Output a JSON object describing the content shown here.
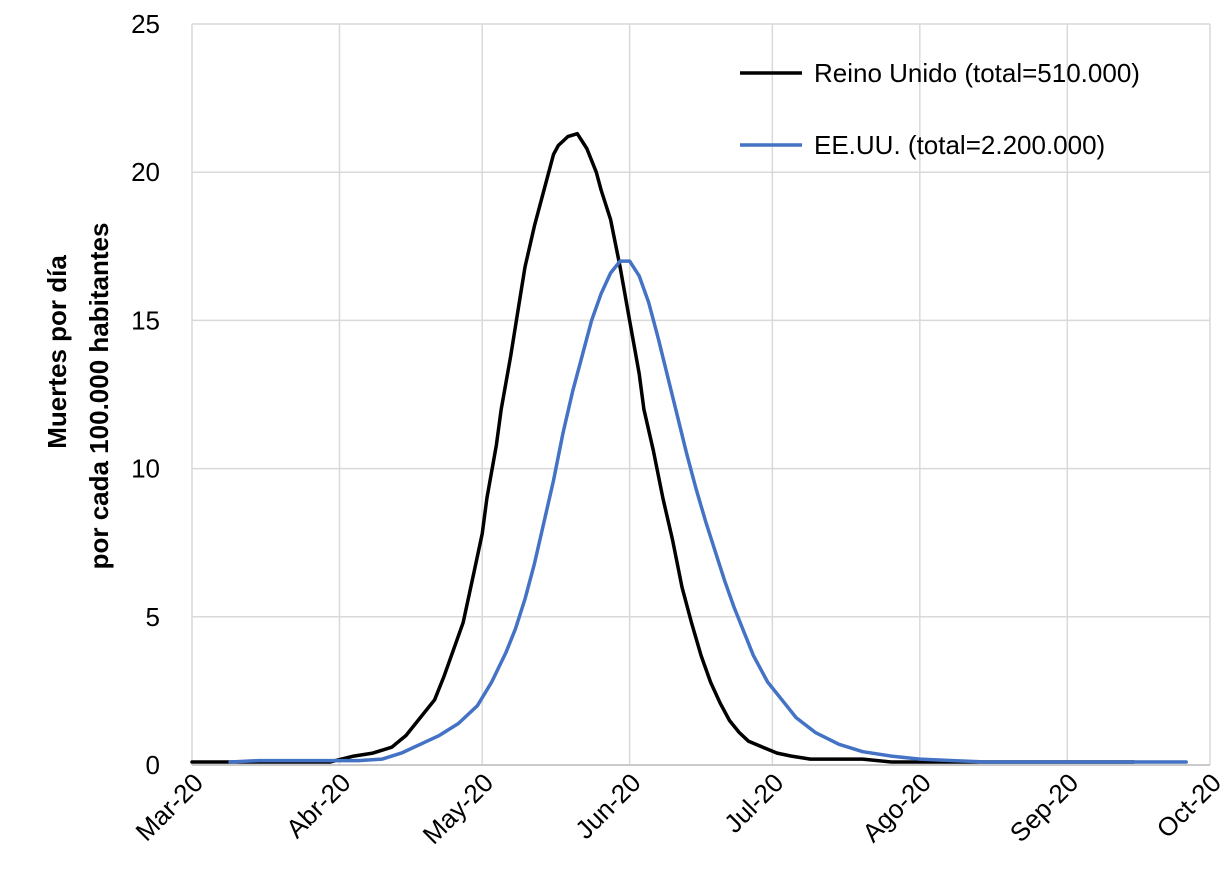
{
  "chart_data": {
    "type": "line",
    "title": "",
    "xlabel": "",
    "ylabel_lines": [
      "Muertes por día",
      "por cada 100.000 habitantes"
    ],
    "ylim": [
      0,
      25
    ],
    "yticks": [
      "0",
      "5",
      "10",
      "15",
      "20",
      "25"
    ],
    "xlim": [
      "2020-03-01",
      "2020-10-01"
    ],
    "xticks": [
      "Mar-20",
      "Abr-20",
      "May-20",
      "Jun-20",
      "Jul-20",
      "Ago-20",
      "Sep-20",
      "Oct-20"
    ],
    "grid": true,
    "legend_position": "top-right",
    "series": [
      {
        "name": "Reino Unido (total=510.000)",
        "color": "#000000",
        "x": [
          "2020-03-01",
          "2020-03-04",
          "2020-03-07",
          "2020-03-12",
          "2020-03-18",
          "2020-03-24",
          "2020-03-30",
          "2020-04-04",
          "2020-04-08",
          "2020-04-12",
          "2020-04-15",
          "2020-04-18",
          "2020-04-21",
          "2020-04-23",
          "2020-04-25",
          "2020-04-27",
          "2020-04-29",
          "2020-05-01",
          "2020-05-02",
          "2020-05-04",
          "2020-05-05",
          "2020-05-07",
          "2020-05-09",
          "2020-05-10",
          "2020-05-12",
          "2020-05-14",
          "2020-05-16",
          "2020-05-17",
          "2020-05-19",
          "2020-05-21",
          "2020-05-23",
          "2020-05-25",
          "2020-05-26",
          "2020-05-28",
          "2020-05-30",
          "2020-06-01",
          "2020-06-03",
          "2020-06-04",
          "2020-06-06",
          "2020-06-08",
          "2020-06-10",
          "2020-06-12",
          "2020-06-14",
          "2020-06-16",
          "2020-06-18",
          "2020-06-20",
          "2020-06-22",
          "2020-06-24",
          "2020-06-26",
          "2020-06-29",
          "2020-07-02",
          "2020-07-05",
          "2020-07-09",
          "2020-07-14",
          "2020-07-20",
          "2020-07-26",
          "2020-08-01",
          "2020-08-10",
          "2020-08-20",
          "2020-09-01",
          "2020-09-15"
        ],
        "values": [
          0.1,
          0.1,
          0.1,
          0.1,
          0.1,
          0.1,
          0.1,
          0.3,
          0.4,
          0.6,
          1.0,
          1.6,
          2.2,
          3.0,
          3.9,
          4.8,
          6.3,
          7.8,
          9.0,
          10.8,
          12.0,
          13.8,
          15.8,
          16.8,
          18.2,
          19.4,
          20.6,
          20.9,
          21.2,
          21.3,
          20.8,
          20.0,
          19.4,
          18.4,
          16.8,
          15.0,
          13.2,
          12.0,
          10.6,
          9.0,
          7.6,
          6.0,
          4.8,
          3.7,
          2.8,
          2.1,
          1.5,
          1.1,
          0.8,
          0.6,
          0.4,
          0.3,
          0.2,
          0.2,
          0.2,
          0.1,
          0.1,
          0.1,
          0.1,
          0.1,
          0.1
        ]
      },
      {
        "name": "EE.UU. (total=2.200.000)",
        "color": "#4472C4",
        "x": [
          "2020-03-09",
          "2020-03-15",
          "2020-03-25",
          "2020-04-05",
          "2020-04-10",
          "2020-04-14",
          "2020-04-18",
          "2020-04-22",
          "2020-04-26",
          "2020-04-30",
          "2020-05-03",
          "2020-05-06",
          "2020-05-08",
          "2020-05-10",
          "2020-05-12",
          "2020-05-14",
          "2020-05-16",
          "2020-05-18",
          "2020-05-20",
          "2020-05-22",
          "2020-05-24",
          "2020-05-26",
          "2020-05-28",
          "2020-05-30",
          "2020-06-01",
          "2020-06-03",
          "2020-06-05",
          "2020-06-07",
          "2020-06-09",
          "2020-06-11",
          "2020-06-13",
          "2020-06-15",
          "2020-06-17",
          "2020-06-19",
          "2020-06-21",
          "2020-06-23",
          "2020-06-25",
          "2020-06-27",
          "2020-06-30",
          "2020-07-03",
          "2020-07-06",
          "2020-07-10",
          "2020-07-15",
          "2020-07-20",
          "2020-07-26",
          "2020-08-01",
          "2020-08-08",
          "2020-08-15",
          "2020-08-25",
          "2020-09-05",
          "2020-09-20",
          "2020-09-26"
        ],
        "values": [
          0.1,
          0.15,
          0.15,
          0.15,
          0.2,
          0.4,
          0.7,
          1.0,
          1.4,
          2.0,
          2.8,
          3.8,
          4.6,
          5.6,
          6.8,
          8.2,
          9.6,
          11.2,
          12.6,
          13.8,
          15.0,
          15.9,
          16.6,
          17.0,
          17.0,
          16.5,
          15.6,
          14.4,
          13.1,
          11.8,
          10.5,
          9.3,
          8.2,
          7.2,
          6.2,
          5.3,
          4.5,
          3.7,
          2.8,
          2.2,
          1.6,
          1.1,
          0.7,
          0.45,
          0.3,
          0.2,
          0.15,
          0.1,
          0.1,
          0.1,
          0.1,
          0.1
        ]
      }
    ]
  }
}
